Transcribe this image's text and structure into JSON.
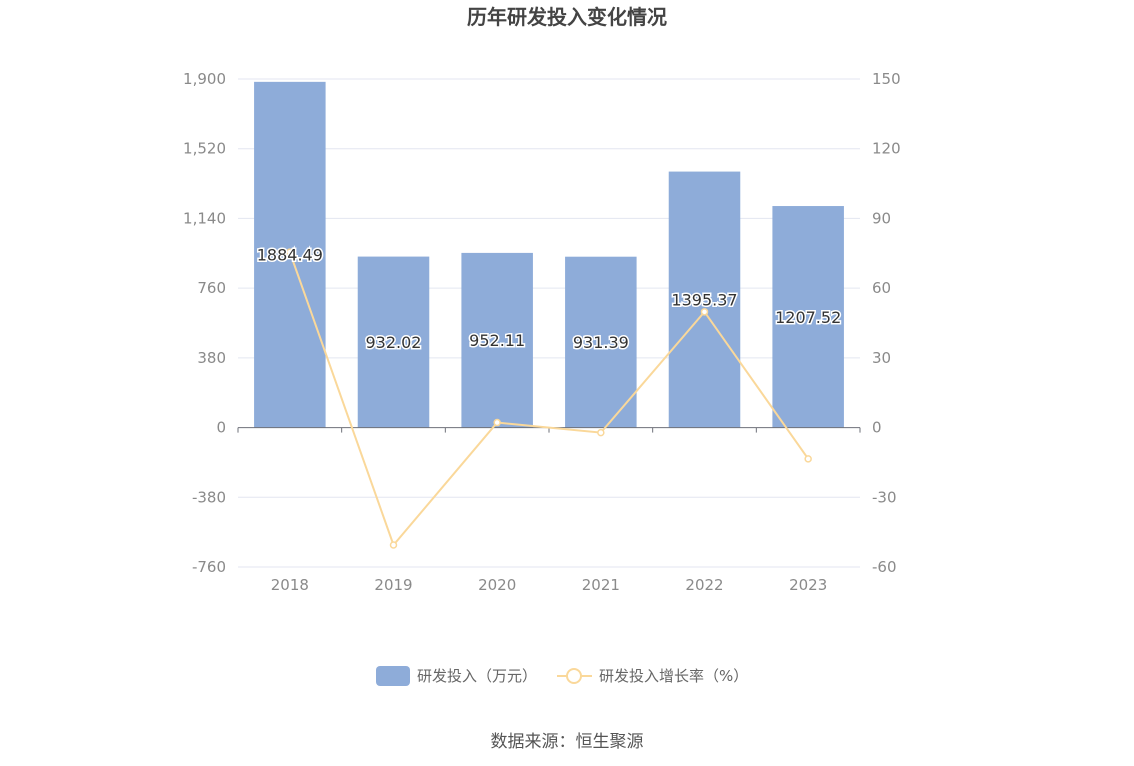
{
  "chart_data": {
    "type": "bar",
    "title": "历年研发投入变化情况",
    "categories": [
      "2018",
      "2019",
      "2020",
      "2021",
      "2022",
      "2023"
    ],
    "series": [
      {
        "name": "研发投入（万元）",
        "type": "bar",
        "axis": "left",
        "color": "#8eacd9",
        "values": [
          1884.49,
          932.02,
          952.11,
          931.39,
          1395.37,
          1207.52
        ],
        "value_labels": [
          "1884.49",
          "932.02",
          "952.11",
          "931.39",
          "1395.37",
          "1207.52"
        ]
      },
      {
        "name": "研发投入增长率（%）",
        "type": "line",
        "axis": "right",
        "color": "#fad89a",
        "values": [
          75.5,
          -50.54,
          2.16,
          -2.18,
          49.81,
          -13.46
        ]
      }
    ],
    "y_left": {
      "ylim": [
        -760,
        1900
      ],
      "ticks": [
        1900,
        1520,
        1140,
        760,
        380,
        0,
        -380,
        -760
      ],
      "tick_labels": [
        "1,900",
        "1,520",
        "1,140",
        "760",
        "380",
        "0",
        "-380",
        "-760"
      ]
    },
    "y_right": {
      "ylim": [
        -60,
        150
      ],
      "ticks": [
        150,
        120,
        90,
        60,
        30,
        0,
        -30,
        -60
      ],
      "tick_labels": [
        "150",
        "120",
        "90",
        "60",
        "30",
        "0",
        "-30",
        "-60"
      ]
    },
    "grid": true,
    "legend_position": "bottom"
  },
  "source_text": "数据来源：恒生聚源"
}
